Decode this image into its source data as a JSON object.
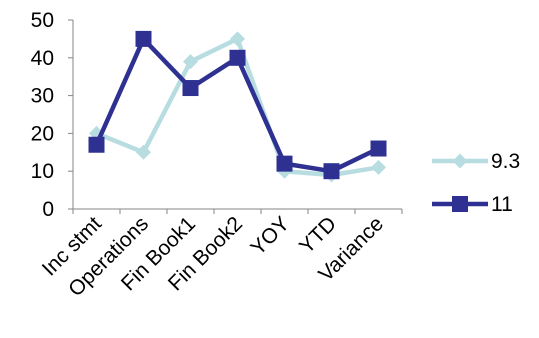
{
  "chart_data": {
    "type": "line",
    "categories": [
      "Inc stmt",
      "Operations",
      "Fin Book1",
      "Fin Book2",
      "YOY",
      "YTD",
      "Variance"
    ],
    "series": [
      {
        "name": "9.3",
        "values": [
          20,
          15,
          39,
          45,
          10,
          9,
          11
        ],
        "color": "#b7dde1",
        "marker": "diamond"
      },
      {
        "name": "11",
        "values": [
          17,
          45,
          32,
          40,
          12,
          10,
          16
        ],
        "color": "#2e3192",
        "marker": "square"
      }
    ],
    "y_ticks": [
      "0",
      "10",
      "20",
      "30",
      "40",
      "50"
    ],
    "ylim": [
      0,
      50
    ],
    "title": "",
    "xlabel": "",
    "ylabel": "",
    "grid": false,
    "legend": "right"
  }
}
